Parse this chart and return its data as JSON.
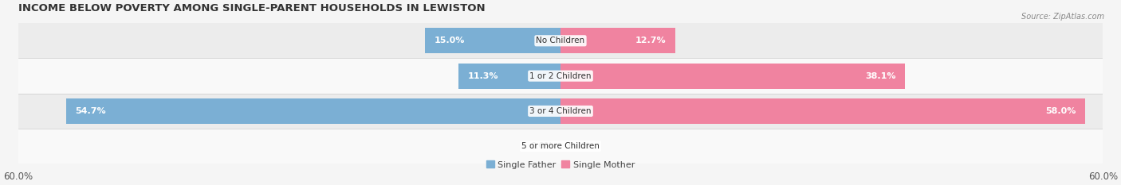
{
  "title": "INCOME BELOW POVERTY AMONG SINGLE-PARENT HOUSEHOLDS IN LEWISTON",
  "source": "Source: ZipAtlas.com",
  "categories": [
    "No Children",
    "1 or 2 Children",
    "3 or 4 Children",
    "5 or more Children"
  ],
  "single_father": [
    15.0,
    11.3,
    54.7,
    0.0
  ],
  "single_mother": [
    12.7,
    38.1,
    58.0,
    0.0
  ],
  "father_color": "#7bafd4",
  "mother_color": "#f083a0",
  "axis_max": 60.0,
  "bar_height": 0.72,
  "row_colors": [
    "#ececec",
    "#f9f9f9",
    "#ececec",
    "#f9f9f9"
  ],
  "bg_color": "#f5f5f5",
  "title_fontsize": 9.5,
  "value_fontsize": 8,
  "cat_label_fontsize": 7.5,
  "tick_fontsize": 8.5,
  "legend_fontsize": 8,
  "value_in_bar_color": "#ffffff",
  "value_out_bar_color": "#444444"
}
